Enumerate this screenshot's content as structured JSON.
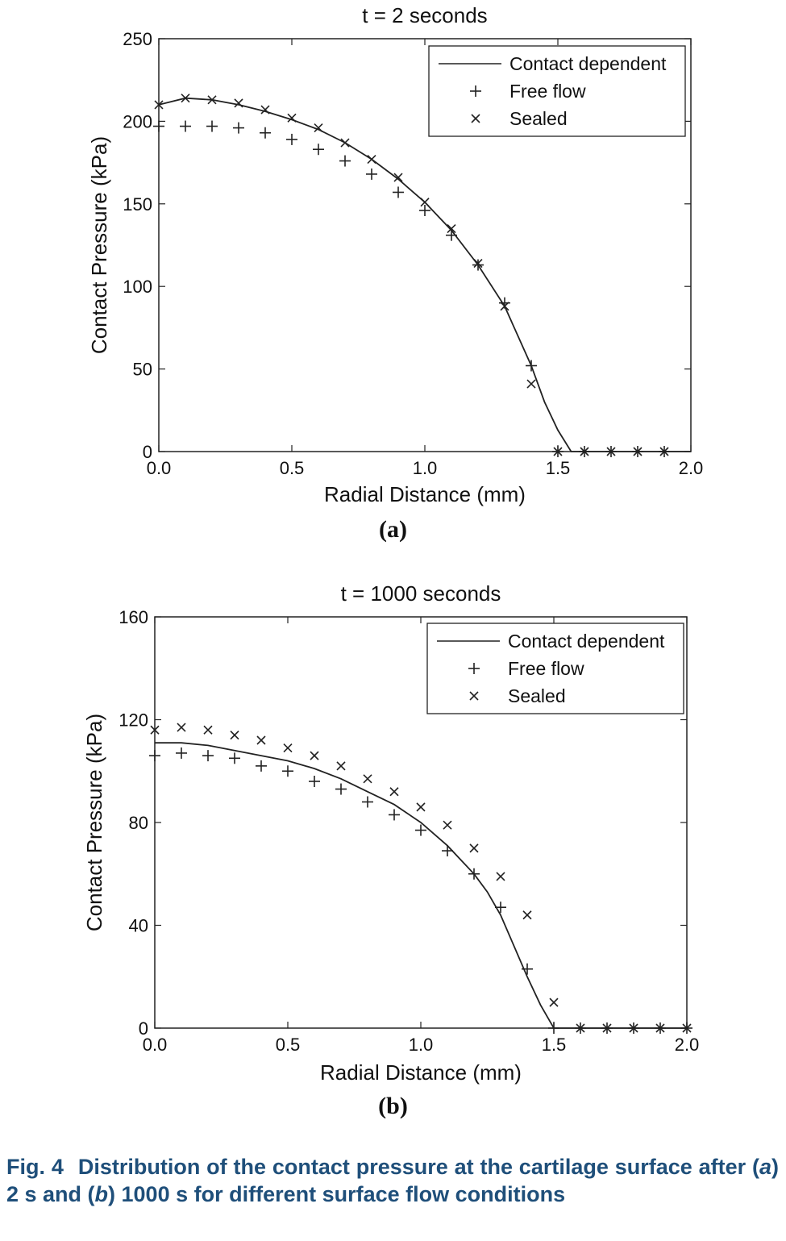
{
  "chart_data": [
    {
      "type": "line",
      "title": "t = 2 seconds",
      "xlabel": "Radial Distance (mm)",
      "ylabel": "Contact Pressure (kPa)",
      "xlim": [
        0,
        2
      ],
      "ylim": [
        0,
        250
      ],
      "xticks": [
        "0.0",
        "0.5",
        "1.0",
        "1.5",
        "2.0"
      ],
      "yticks": [
        "0",
        "50",
        "100",
        "150",
        "200",
        "250"
      ],
      "xtick_values": [
        0,
        0.5,
        1.0,
        1.5,
        2.0
      ],
      "ytick_values": [
        0,
        50,
        100,
        150,
        200,
        250
      ],
      "legend_position": "top-right",
      "panel_label": "(a)",
      "series": [
        {
          "name": "Contact dependent",
          "marker": "line",
          "x": [
            0,
            0.1,
            0.2,
            0.3,
            0.4,
            0.5,
            0.6,
            0.7,
            0.8,
            0.9,
            1.0,
            1.1,
            1.2,
            1.3,
            1.4,
            1.45,
            1.5,
            1.55,
            1.6,
            1.7,
            1.8,
            1.9,
            2.0
          ],
          "y": [
            210,
            214,
            213,
            210,
            206,
            201,
            195,
            187,
            177,
            165,
            151,
            134,
            113,
            88,
            52,
            30,
            13,
            0,
            0,
            0,
            0,
            0,
            0
          ]
        },
        {
          "name": "Free flow",
          "marker": "+",
          "x": [
            0,
            0.1,
            0.2,
            0.3,
            0.4,
            0.5,
            0.6,
            0.7,
            0.8,
            0.9,
            1.0,
            1.1,
            1.2,
            1.3,
            1.4,
            1.5,
            1.6,
            1.7,
            1.8,
            1.9
          ],
          "y": [
            197,
            197,
            197,
            196,
            193,
            189,
            183,
            176,
            168,
            157,
            146,
            131,
            113,
            90,
            52,
            0,
            0,
            0,
            0,
            0
          ]
        },
        {
          "name": "Sealed",
          "marker": "x",
          "x": [
            0,
            0.1,
            0.2,
            0.3,
            0.4,
            0.5,
            0.6,
            0.7,
            0.8,
            0.9,
            1.0,
            1.1,
            1.2,
            1.3,
            1.4,
            1.5,
            1.6,
            1.7,
            1.8,
            1.9
          ],
          "y": [
            210,
            214,
            213,
            211,
            207,
            202,
            196,
            187,
            177,
            166,
            151,
            135,
            114,
            88,
            41,
            0,
            0,
            0,
            0,
            0
          ]
        }
      ]
    },
    {
      "type": "line",
      "title": "t = 1000 seconds",
      "xlabel": "Radial Distance (mm)",
      "ylabel": "Contact Pressure (kPa)",
      "xlim": [
        0,
        2
      ],
      "ylim": [
        0,
        160
      ],
      "xticks": [
        "0.0",
        "0.5",
        "1.0",
        "1.5",
        "2.0"
      ],
      "yticks": [
        "0",
        "40",
        "80",
        "120",
        "160"
      ],
      "xtick_values": [
        0,
        0.5,
        1.0,
        1.5,
        2.0
      ],
      "ytick_values": [
        0,
        40,
        80,
        120,
        160
      ],
      "legend_position": "top-right",
      "panel_label": "(b)",
      "series": [
        {
          "name": "Contact dependent",
          "marker": "line",
          "x": [
            0,
            0.1,
            0.2,
            0.3,
            0.4,
            0.5,
            0.6,
            0.7,
            0.8,
            0.9,
            1.0,
            1.1,
            1.2,
            1.25,
            1.3,
            1.35,
            1.4,
            1.45,
            1.5,
            1.6,
            1.7,
            1.8,
            1.9,
            2.0
          ],
          "y": [
            111,
            111,
            110,
            108,
            106,
            104,
            101,
            97,
            92,
            87,
            80,
            71,
            60,
            53,
            44,
            32,
            20,
            9,
            0,
            0,
            0,
            0,
            0,
            0
          ]
        },
        {
          "name": "Free flow",
          "marker": "+",
          "x": [
            0,
            0.1,
            0.2,
            0.3,
            0.4,
            0.5,
            0.6,
            0.7,
            0.8,
            0.9,
            1.0,
            1.1,
            1.2,
            1.3,
            1.4,
            1.5,
            1.6,
            1.7,
            1.8,
            1.9,
            2.0
          ],
          "y": [
            106,
            107,
            106,
            105,
            102,
            100,
            96,
            93,
            88,
            83,
            77,
            69,
            60,
            47,
            23,
            0,
            0,
            0,
            0,
            0,
            0
          ]
        },
        {
          "name": "Sealed",
          "marker": "x",
          "x": [
            0,
            0.1,
            0.2,
            0.3,
            0.4,
            0.5,
            0.6,
            0.7,
            0.8,
            0.9,
            1.0,
            1.1,
            1.2,
            1.3,
            1.4,
            1.5,
            1.6,
            1.7,
            1.8,
            1.9,
            2.0
          ],
          "y": [
            116,
            117,
            116,
            114,
            112,
            109,
            106,
            102,
            97,
            92,
            86,
            79,
            70,
            59,
            44,
            10,
            0,
            0,
            0,
            0,
            0
          ]
        }
      ]
    }
  ],
  "caption": {
    "fig_num": "Fig. 4",
    "part1": "Distribution of the contact pressure at the cartilage surface after (",
    "a": "a",
    "part2": ") 2 s and (",
    "b": "b",
    "part3": ") 1000 s for different surface flow conditions"
  }
}
